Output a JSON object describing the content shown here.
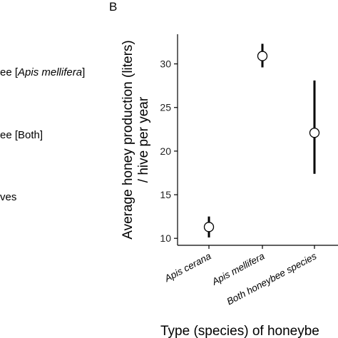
{
  "panel_label": "B",
  "left_fragments": {
    "line1_prefix": "ee [",
    "line1_species": "Apis mellifera",
    "line1_suffix": "]",
    "line2": "ee [Both]",
    "line3": "ves"
  },
  "chart_data": {
    "type": "scatter",
    "title": "",
    "xlabel": "Type (species) of honeybe",
    "ylabel_line1": "Average honey production (liters)",
    "ylabel_line2": "/ hive per year",
    "categories": [
      "Apis cerana",
      "Apis mellifera",
      "Both honeybee species"
    ],
    "points": [
      {
        "category": "Apis cerana",
        "mean": 11.3,
        "lower": 10.1,
        "upper": 12.5
      },
      {
        "category": "Apis mellifera",
        "mean": 30.9,
        "lower": 29.6,
        "upper": 32.3
      },
      {
        "category": "Both honeybee species",
        "mean": 22.1,
        "lower": 17.4,
        "upper": 28.1
      }
    ],
    "yticks": [
      10,
      15,
      20,
      25,
      30
    ],
    "ylim": [
      9.2,
      33.4
    ],
    "grid": false
  }
}
